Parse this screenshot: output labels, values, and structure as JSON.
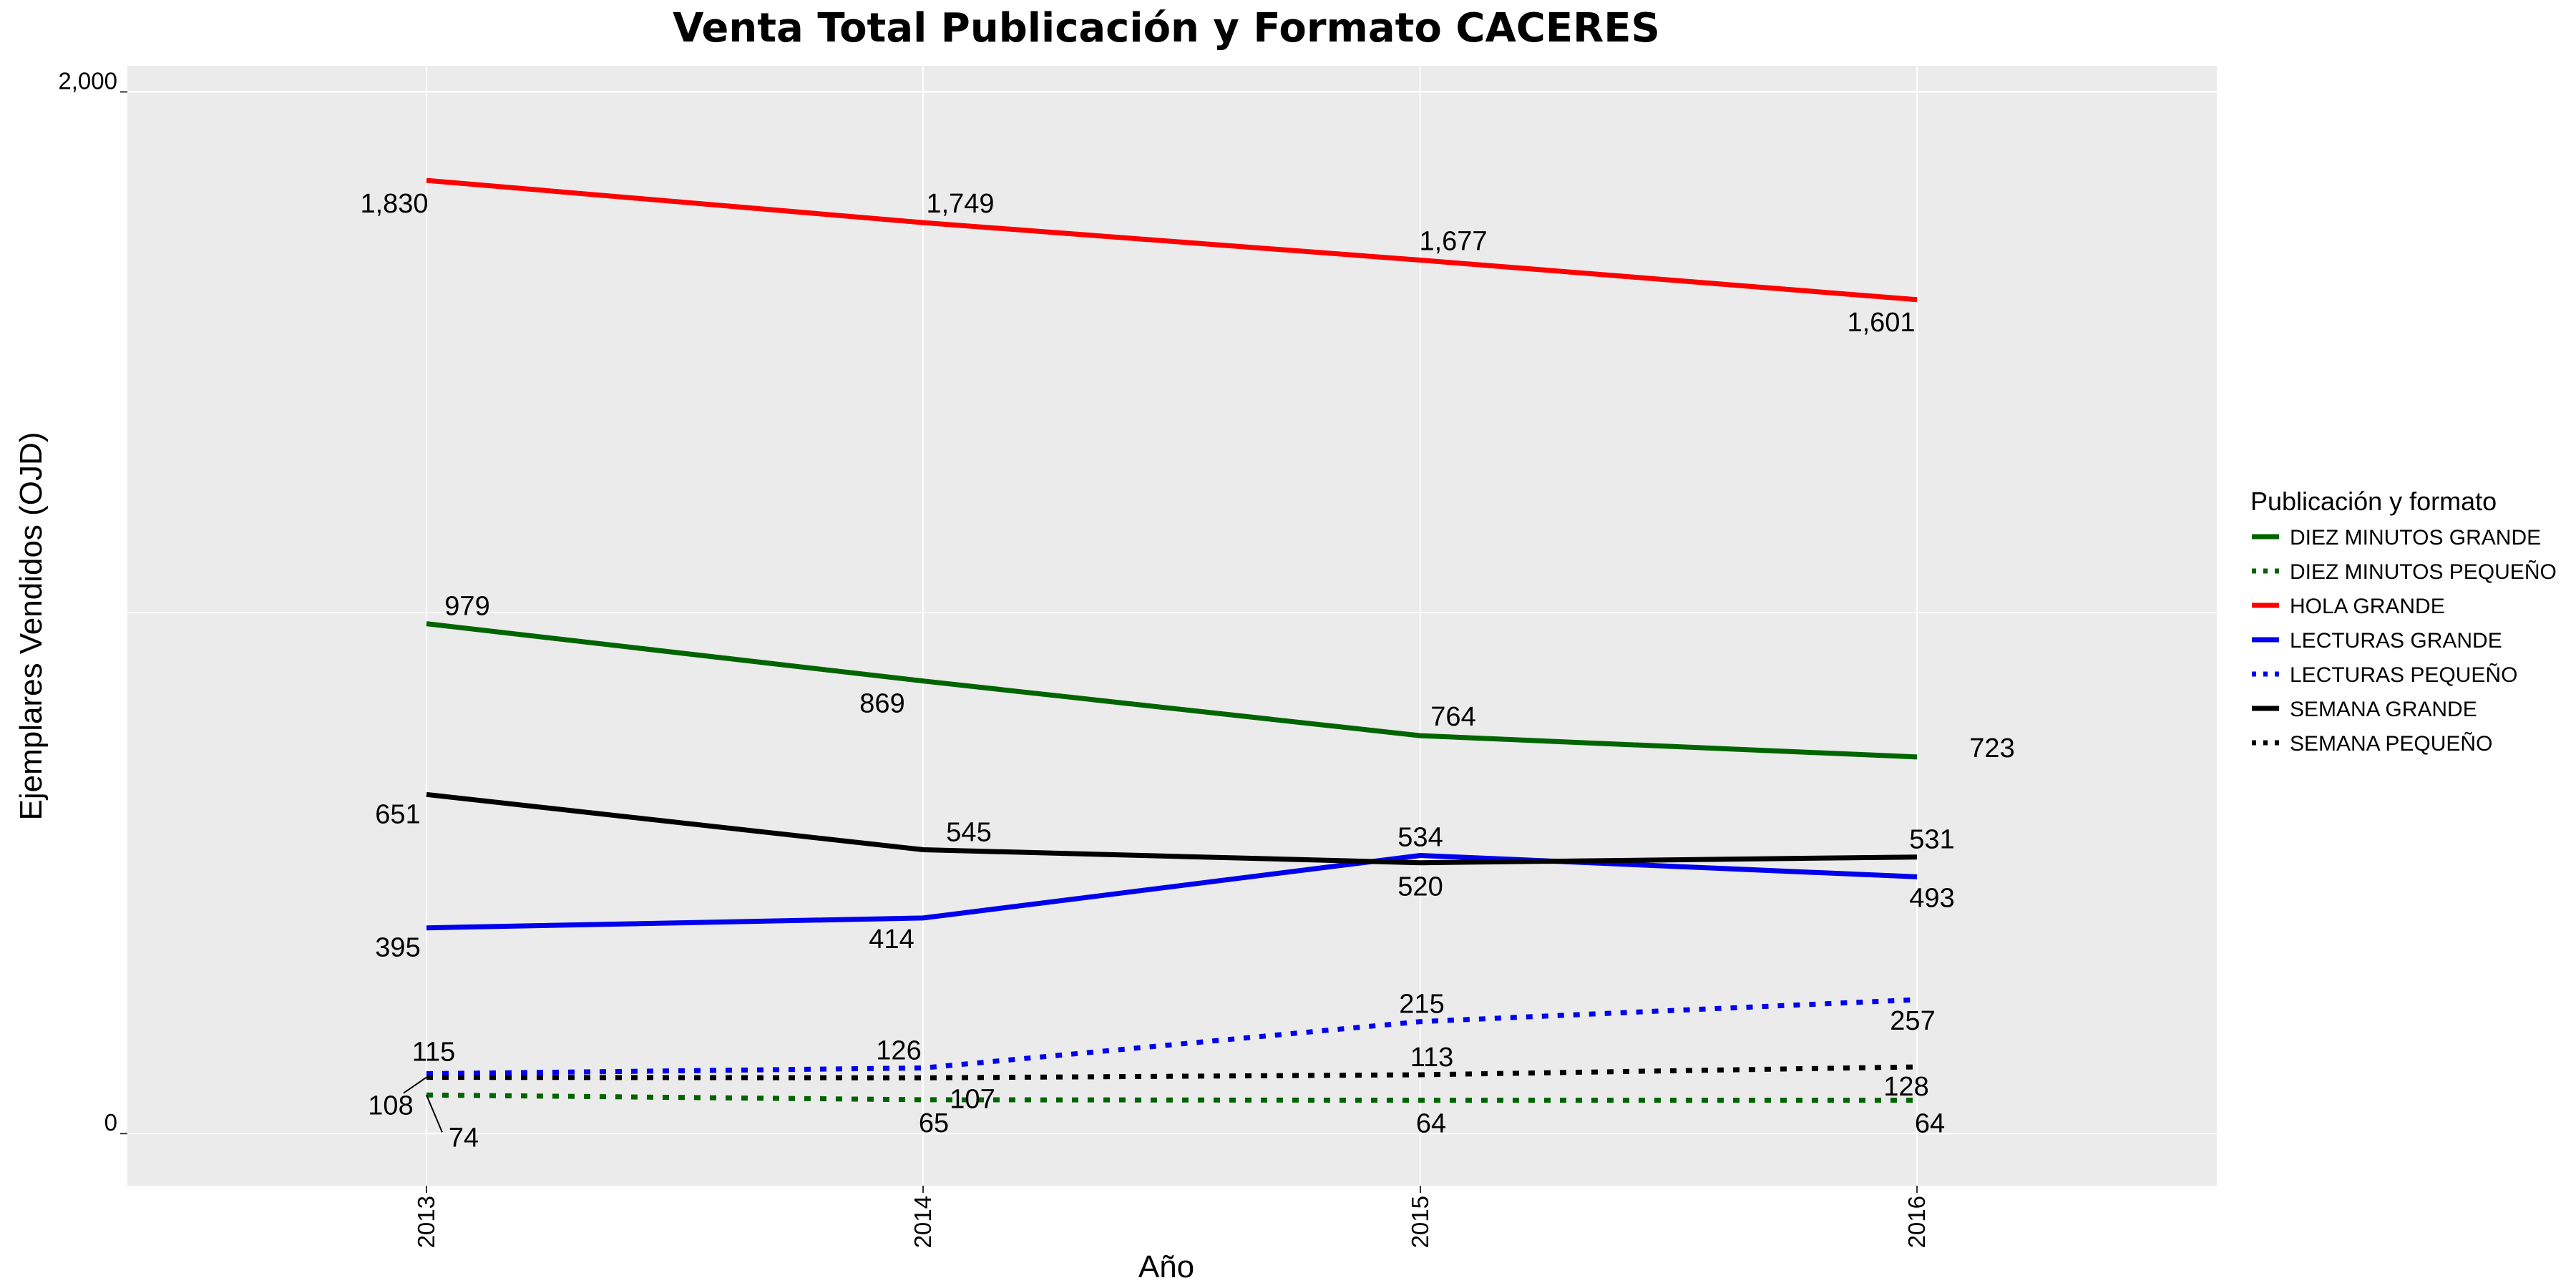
{
  "chart_data": {
    "type": "line",
    "title": "Venta Total Publicación y Formato  CACERES",
    "xlabel": "Año",
    "ylabel": "Ejemplares Vendidos (OJD)",
    "x": [
      "2013",
      "2014",
      "2015",
      "2016"
    ],
    "ylim": [
      -100,
      2050
    ],
    "yticks": [
      {
        "value": 0,
        "label": "0"
      },
      {
        "value": 2000,
        "label": "2,000"
      }
    ],
    "grid": true,
    "legend": {
      "title": "Publicación y formato",
      "placement": "right"
    },
    "series": [
      {
        "name": "DIEZ MINUTOS GRANDE",
        "color": "#006400",
        "dash": "solid",
        "values": [
          979,
          869,
          764,
          723
        ]
      },
      {
        "name": "DIEZ MINUTOS PEQUEÑO",
        "color": "#006400",
        "dash": "dotted",
        "values": [
          74,
          65,
          64,
          64
        ]
      },
      {
        "name": "HOLA GRANDE",
        "color": "#ff0000",
        "dash": "solid",
        "values": [
          1830,
          1749,
          1677,
          1601
        ]
      },
      {
        "name": "LECTURAS GRANDE",
        "color": "#0000ee",
        "dash": "solid",
        "values": [
          395,
          414,
          534,
          493
        ]
      },
      {
        "name": "LECTURAS PEQUEÑO",
        "color": "#0000ee",
        "dash": "dotted",
        "values": [
          115,
          126,
          215,
          257
        ]
      },
      {
        "name": "SEMANA GRANDE",
        "color": "#000000",
        "dash": "solid",
        "values": [
          651,
          545,
          520,
          531
        ]
      },
      {
        "name": "SEMANA PEQUEÑO",
        "color": "#000000",
        "dash": "dotted",
        "values": [
          108,
          107,
          113,
          128
        ]
      }
    ],
    "data_labels": [
      {
        "series": 2,
        "point": 0,
        "text": "1,830"
      },
      {
        "series": 2,
        "point": 1,
        "text": "1,749"
      },
      {
        "series": 2,
        "point": 2,
        "text": "1,677"
      },
      {
        "series": 2,
        "point": 3,
        "text": "1,601"
      },
      {
        "series": 0,
        "point": 0,
        "text": "979"
      },
      {
        "series": 0,
        "point": 1,
        "text": "869"
      },
      {
        "series": 0,
        "point": 2,
        "text": "764"
      },
      {
        "series": 0,
        "point": 3,
        "text": "723"
      },
      {
        "series": 5,
        "point": 0,
        "text": "651"
      },
      {
        "series": 5,
        "point": 1,
        "text": "545"
      },
      {
        "series": 5,
        "point": 2,
        "text": "520"
      },
      {
        "series": 5,
        "point": 3,
        "text": "531"
      },
      {
        "series": 3,
        "point": 0,
        "text": "395"
      },
      {
        "series": 3,
        "point": 1,
        "text": "414"
      },
      {
        "series": 3,
        "point": 2,
        "text": "534"
      },
      {
        "series": 3,
        "point": 3,
        "text": "493"
      },
      {
        "series": 4,
        "point": 0,
        "text": "115"
      },
      {
        "series": 4,
        "point": 1,
        "text": "126"
      },
      {
        "series": 4,
        "point": 2,
        "text": "215"
      },
      {
        "series": 4,
        "point": 3,
        "text": "257"
      },
      {
        "series": 6,
        "point": 0,
        "text": "108"
      },
      {
        "series": 6,
        "point": 1,
        "text": "107"
      },
      {
        "series": 6,
        "point": 2,
        "text": "113"
      },
      {
        "series": 6,
        "point": 3,
        "text": "128"
      },
      {
        "series": 1,
        "point": 0,
        "text": "74"
      },
      {
        "series": 1,
        "point": 1,
        "text": "65"
      },
      {
        "series": 1,
        "point": 2,
        "text": "64"
      },
      {
        "series": 1,
        "point": 3,
        "text": "64"
      }
    ]
  }
}
